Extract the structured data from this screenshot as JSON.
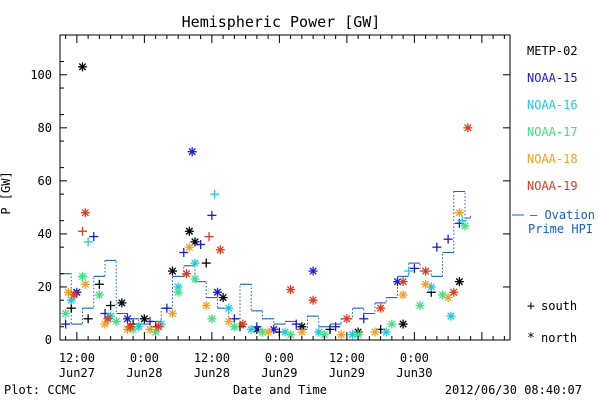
{
  "chart_data": {
    "type": "scatter",
    "title": "Hemispheric Power [GW]",
    "xlabel": "Date and Time",
    "ylabel": "P [GW]",
    "ylim": [
      0,
      115
    ],
    "xlim_hours": [
      -15,
      65
    ],
    "xticks": [
      {
        "hour": -12,
        "time": "12:00",
        "date": "Jun27"
      },
      {
        "hour": 0,
        "time": "0:00",
        "date": "Jun28"
      },
      {
        "hour": 12,
        "time": "12:00",
        "date": "Jun28"
      },
      {
        "hour": 24,
        "time": "0:00",
        "date": "Jun29"
      },
      {
        "hour": 36,
        "time": "12:00",
        "date": "Jun29"
      },
      {
        "hour": 48,
        "time": "0:00",
        "date": "Jun30"
      }
    ],
    "yticks": [
      0,
      20,
      40,
      60,
      80,
      100
    ],
    "grid": false,
    "legend": {
      "placement": "right",
      "satellites": [
        {
          "name": "METP-02",
          "color": "#000000"
        },
        {
          "name": "NOAA-15",
          "color": "#1a1ad6"
        },
        {
          "name": "NOAA-16",
          "color": "#22c8d8"
        },
        {
          "name": "NOAA-17",
          "color": "#3ee082"
        },
        {
          "name": "NOAA-18",
          "color": "#f0a020"
        },
        {
          "name": "NOAA-19",
          "color": "#e03a1e"
        }
      ],
      "ovation_label_1": "— Ovation",
      "ovation_label_2": "Prime HPI",
      "ovation_color": "#1a5fc0",
      "south_symbol": "+",
      "south_label": "south",
      "north_symbol": "*",
      "north_label": "north"
    },
    "series": [
      {
        "name": "METP-02",
        "color": "#000000",
        "points": [
          {
            "x": -13,
            "y": 12,
            "m": "+"
          },
          {
            "x": -11,
            "y": 103,
            "m": "*"
          },
          {
            "x": -10,
            "y": 8,
            "m": "+"
          },
          {
            "x": -8,
            "y": 21,
            "m": "+"
          },
          {
            "x": -6,
            "y": 13,
            "m": "+"
          },
          {
            "x": -4,
            "y": 14,
            "m": "*"
          },
          {
            "x": -2,
            "y": 6,
            "m": "+"
          },
          {
            "x": 0,
            "y": 8,
            "m": "*"
          },
          {
            "x": 2,
            "y": 5,
            "m": "+"
          },
          {
            "x": 5,
            "y": 26,
            "m": "*"
          },
          {
            "x": 8,
            "y": 41,
            "m": "*"
          },
          {
            "x": 9,
            "y": 37,
            "m": "*"
          },
          {
            "x": 11,
            "y": 29,
            "m": "+"
          },
          {
            "x": 14,
            "y": 16,
            "m": "*"
          },
          {
            "x": 17,
            "y": 5,
            "m": "+"
          },
          {
            "x": 20,
            "y": 4,
            "m": "*"
          },
          {
            "x": 24,
            "y": 3,
            "m": "+"
          },
          {
            "x": 28,
            "y": 5,
            "m": "*"
          },
          {
            "x": 33,
            "y": 4,
            "m": "+"
          },
          {
            "x": 38,
            "y": 3,
            "m": "*"
          },
          {
            "x": 42,
            "y": 4,
            "m": "+"
          },
          {
            "x": 46,
            "y": 6,
            "m": "*"
          },
          {
            "x": 51,
            "y": 18,
            "m": "+"
          },
          {
            "x": 56,
            "y": 22,
            "m": "*"
          }
        ]
      },
      {
        "name": "NOAA-15",
        "color": "#1a1ad6",
        "points": [
          {
            "x": -14,
            "y": 6,
            "m": "+"
          },
          {
            "x": -12,
            "y": 18,
            "m": "*"
          },
          {
            "x": -9,
            "y": 39,
            "m": "+"
          },
          {
            "x": -7,
            "y": 10,
            "m": "+"
          },
          {
            "x": -3,
            "y": 8,
            "m": "*"
          },
          {
            "x": 1,
            "y": 7,
            "m": "+"
          },
          {
            "x": 4,
            "y": 12,
            "m": "+"
          },
          {
            "x": 7,
            "y": 33,
            "m": "+"
          },
          {
            "x": 8.5,
            "y": 71,
            "m": "*"
          },
          {
            "x": 10,
            "y": 36,
            "m": "+"
          },
          {
            "x": 12,
            "y": 47,
            "m": "+"
          },
          {
            "x": 13,
            "y": 18,
            "m": "*"
          },
          {
            "x": 16,
            "y": 8,
            "m": "+"
          },
          {
            "x": 20,
            "y": 5,
            "m": "+"
          },
          {
            "x": 23,
            "y": 4,
            "m": "*"
          },
          {
            "x": 27,
            "y": 6,
            "m": "+"
          },
          {
            "x": 30,
            "y": 26,
            "m": "*"
          },
          {
            "x": 34,
            "y": 5,
            "m": "+"
          },
          {
            "x": 39,
            "y": 8,
            "m": "+"
          },
          {
            "x": 45,
            "y": 22,
            "m": "*"
          },
          {
            "x": 48,
            "y": 27,
            "m": "+"
          },
          {
            "x": 52,
            "y": 35,
            "m": "+"
          },
          {
            "x": 54,
            "y": 38,
            "m": "+"
          },
          {
            "x": 56,
            "y": 44,
            "m": "+"
          }
        ]
      },
      {
        "name": "NOAA-16",
        "color": "#22c8d8",
        "points": [
          {
            "x": -13,
            "y": 15,
            "m": "*"
          },
          {
            "x": -10,
            "y": 37,
            "m": "+"
          },
          {
            "x": -6,
            "y": 9,
            "m": "*"
          },
          {
            "x": -1,
            "y": 5,
            "m": "*"
          },
          {
            "x": 3,
            "y": 6,
            "m": "*"
          },
          {
            "x": 6,
            "y": 20,
            "m": "*"
          },
          {
            "x": 9,
            "y": 29,
            "m": "*"
          },
          {
            "x": 12.5,
            "y": 55,
            "m": "+"
          },
          {
            "x": 15,
            "y": 12,
            "m": "*"
          },
          {
            "x": 19,
            "y": 4,
            "m": "*"
          },
          {
            "x": 25,
            "y": 3,
            "m": "*"
          },
          {
            "x": 31,
            "y": 3,
            "m": "*"
          },
          {
            "x": 37,
            "y": 2,
            "m": "*"
          },
          {
            "x": 43,
            "y": 3,
            "m": "*"
          },
          {
            "x": 47,
            "y": 26,
            "m": "+"
          },
          {
            "x": 51,
            "y": 20,
            "m": "*"
          },
          {
            "x": 54.5,
            "y": 9,
            "m": "*"
          },
          {
            "x": 56.5,
            "y": 45,
            "m": "+"
          }
        ]
      },
      {
        "name": "NOAA-17",
        "color": "#3ee082",
        "points": [
          {
            "x": -14,
            "y": 10,
            "m": "*"
          },
          {
            "x": -11,
            "y": 24,
            "m": "*"
          },
          {
            "x": -8,
            "y": 17,
            "m": "*"
          },
          {
            "x": -5,
            "y": 7,
            "m": "*"
          },
          {
            "x": -2,
            "y": 4,
            "m": "*"
          },
          {
            "x": 2,
            "y": 3,
            "m": "*"
          },
          {
            "x": 6,
            "y": 18,
            "m": "*"
          },
          {
            "x": 9,
            "y": 23,
            "m": "*"
          },
          {
            "x": 12,
            "y": 8,
            "m": "*"
          },
          {
            "x": 16,
            "y": 5,
            "m": "*"
          },
          {
            "x": 21,
            "y": 3,
            "m": "*"
          },
          {
            "x": 26,
            "y": 2,
            "m": "*"
          },
          {
            "x": 32,
            "y": 2,
            "m": "*"
          },
          {
            "x": 38,
            "y": 2,
            "m": "*"
          },
          {
            "x": 44,
            "y": 6,
            "m": "*"
          },
          {
            "x": 49,
            "y": 13,
            "m": "*"
          },
          {
            "x": 53,
            "y": 17,
            "m": "*"
          },
          {
            "x": 57,
            "y": 43,
            "m": "*"
          }
        ]
      },
      {
        "name": "NOAA-18",
        "color": "#f0a020",
        "points": [
          {
            "x": -13.5,
            "y": 18,
            "m": "*"
          },
          {
            "x": -10.5,
            "y": 21,
            "m": "*"
          },
          {
            "x": -7,
            "y": 6,
            "m": "*"
          },
          {
            "x": -3,
            "y": 4,
            "m": "*"
          },
          {
            "x": 1,
            "y": 4,
            "m": "*"
          },
          {
            "x": 5,
            "y": 10,
            "m": "*"
          },
          {
            "x": 8,
            "y": 35,
            "m": "*"
          },
          {
            "x": 11,
            "y": 13,
            "m": "*"
          },
          {
            "x": 15,
            "y": 7,
            "m": "*"
          },
          {
            "x": 22,
            "y": 3,
            "m": "*"
          },
          {
            "x": 28,
            "y": 3,
            "m": "*"
          },
          {
            "x": 35,
            "y": 2,
            "m": "*"
          },
          {
            "x": 41,
            "y": 3,
            "m": "*"
          },
          {
            "x": 46,
            "y": 17,
            "m": "*"
          },
          {
            "x": 50,
            "y": 21,
            "m": "*"
          },
          {
            "x": 54,
            "y": 16,
            "m": "*"
          },
          {
            "x": 56,
            "y": 48,
            "m": "*"
          }
        ]
      },
      {
        "name": "NOAA-19",
        "color": "#e03a1e",
        "points": [
          {
            "x": -12.5,
            "y": 17,
            "m": "*"
          },
          {
            "x": -11,
            "y": 41,
            "m": "+"
          },
          {
            "x": -10.5,
            "y": 48,
            "m": "*"
          },
          {
            "x": -6.5,
            "y": 8,
            "m": "*"
          },
          {
            "x": -2.5,
            "y": 5,
            "m": "*"
          },
          {
            "x": 2.5,
            "y": 5,
            "m": "*"
          },
          {
            "x": 7.5,
            "y": 25,
            "m": "*"
          },
          {
            "x": 11.5,
            "y": 39,
            "m": "+"
          },
          {
            "x": 13.5,
            "y": 34,
            "m": "*"
          },
          {
            "x": 17.5,
            "y": 6,
            "m": "*"
          },
          {
            "x": 26,
            "y": 19,
            "m": "*"
          },
          {
            "x": 30,
            "y": 15,
            "m": "*"
          },
          {
            "x": 36,
            "y": 8,
            "m": "*"
          },
          {
            "x": 42,
            "y": 12,
            "m": "*"
          },
          {
            "x": 46,
            "y": 22,
            "m": "*"
          },
          {
            "x": 50,
            "y": 26,
            "m": "*"
          },
          {
            "x": 55,
            "y": 18,
            "m": "*"
          },
          {
            "x": 57.5,
            "y": 80,
            "m": "*"
          }
        ]
      }
    ],
    "ovation_hpi": [
      [
        -15,
        25
      ],
      [
        -13,
        6
      ],
      [
        -11,
        12
      ],
      [
        -9,
        24
      ],
      [
        -7,
        30
      ],
      [
        -5,
        10
      ],
      [
        -3,
        8
      ],
      [
        -1,
        6
      ],
      [
        1,
        7
      ],
      [
        3,
        12
      ],
      [
        5,
        24
      ],
      [
        7,
        28
      ],
      [
        9,
        22
      ],
      [
        11,
        16
      ],
      [
        13,
        12
      ],
      [
        15,
        8
      ],
      [
        17,
        21
      ],
      [
        19,
        11
      ],
      [
        21,
        8
      ],
      [
        23,
        6
      ],
      [
        25,
        7
      ],
      [
        27,
        4
      ],
      [
        29,
        9
      ],
      [
        31,
        5
      ],
      [
        33,
        6
      ],
      [
        35,
        8
      ],
      [
        37,
        12
      ],
      [
        39,
        10
      ],
      [
        41,
        14
      ],
      [
        43,
        16
      ],
      [
        45,
        24
      ],
      [
        47,
        29
      ],
      [
        49,
        26
      ],
      [
        51,
        24
      ],
      [
        53,
        33
      ],
      [
        55,
        56
      ],
      [
        57,
        46
      ],
      [
        58,
        47
      ]
    ],
    "footer_left": "Plot: CCMC",
    "footer_right": "2012/06/30 08:40:07"
  }
}
